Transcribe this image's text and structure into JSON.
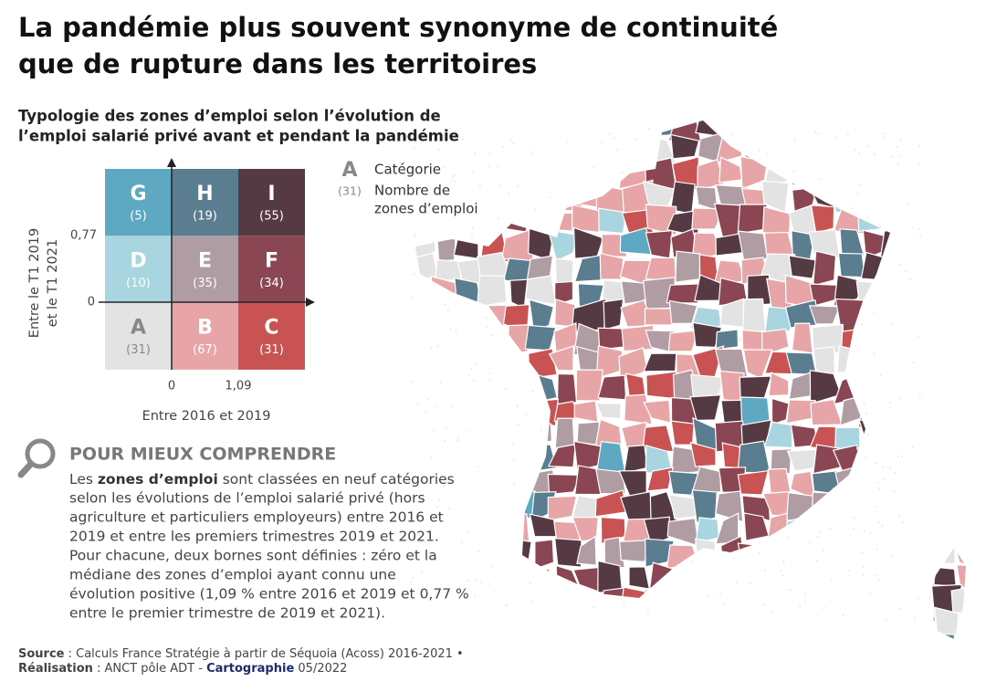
{
  "header": {
    "title": [
      "La pandémie plus souvent synonyme de continuité",
      "que de rupture dans les territoires"
    ],
    "subtitle": [
      "Typologie des zones d’emploi selon l’évolution de",
      "l’emploi salarié privé avant et pendant la pandémie"
    ]
  },
  "matrix": {
    "cells": [
      {
        "letter": "G",
        "count": "(5)"
      },
      {
        "letter": "H",
        "count": "(19)"
      },
      {
        "letter": "I",
        "count": "(55)"
      },
      {
        "letter": "D",
        "count": "(10)"
      },
      {
        "letter": "E",
        "count": "(35)"
      },
      {
        "letter": "F",
        "count": "(34)"
      },
      {
        "letter": "A",
        "count": "(31)"
      },
      {
        "letter": "B",
        "count": "(67)"
      },
      {
        "letter": "C",
        "count": "(31)"
      }
    ],
    "y_ticks": [
      "0,77",
      "0"
    ],
    "x_ticks": [
      "0",
      "1,09"
    ],
    "y_label": [
      "Entre le T1 2019",
      "et le T1 2021"
    ],
    "x_label": "Entre 2016 et 2019"
  },
  "legend": {
    "letter": "A",
    "count": "(31)",
    "lines": [
      "Catégorie",
      "Nombre de",
      "zones d’emploi"
    ]
  },
  "understand": {
    "heading": "POUR MIEUX COMPRENDRE",
    "first_line": [
      "Les ",
      "zones d’emploi",
      " sont classées en neuf catégories"
    ],
    "lines": [
      "selon les évolutions de l’emploi salarié privé (hors",
      "agriculture et particuliers employeurs) entre 2016 et",
      "2019 et entre les premiers trimestres 2019 et 2021.",
      "Pour chacune, deux bornes sont définies : zéro et la",
      "médiane des zones d’emploi ayant connu une",
      "évolution positive (1,09 % entre 2016 et 2019 et 0,77 %",
      "entre le premier trimestre de 2019 et 2021)."
    ]
  },
  "footer": {
    "source_label": "Source",
    "source_text": " : Calculs France Stratégie à partir de Séquoia (Acoss) 2016-2021 •",
    "credit_label": "Réalisation",
    "credit_text": " : ANCT pôle ADT - ",
    "credit_link": "Cartographie",
    "credit_date": " 05/2022"
  }
}
